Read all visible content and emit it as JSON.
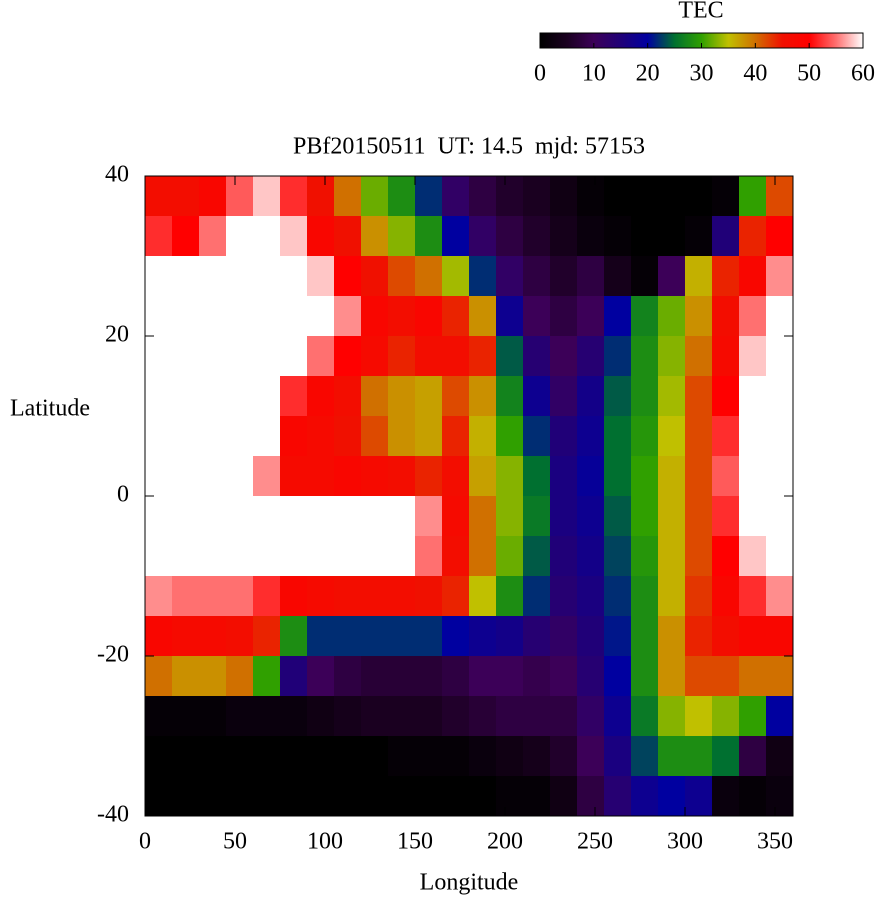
{
  "chart_data": {
    "type": "heatmap",
    "title": "PBf20150511  UT: 14.5  mjd: 57153",
    "xlabel": "Longitude",
    "ylabel": "Latitude",
    "colorbar_label": "TEC",
    "xlim": [
      0,
      360
    ],
    "ylim": [
      -40,
      40
    ],
    "zlim": [
      0,
      60
    ],
    "xticks": [
      0,
      50,
      100,
      150,
      200,
      250,
      300,
      350
    ],
    "yticks": [
      -40,
      -20,
      0,
      20,
      40
    ],
    "zticks": [
      0,
      10,
      20,
      30,
      40,
      50,
      60
    ],
    "palette": [
      "#000000",
      "#1a0020",
      "#3c0058",
      "#200078",
      "#0000a0",
      "#007030",
      "#30a000",
      "#c0c000",
      "#d07000",
      "#f01000",
      "#ff0000",
      "#ff7070",
      "#ffffff"
    ],
    "x": [
      7.5,
      22.5,
      37.5,
      52.5,
      67.5,
      82.5,
      97.5,
      112.5,
      127.5,
      142.5,
      157.5,
      172.5,
      187.5,
      202.5,
      217.5,
      232.5,
      247.5,
      262.5,
      277.5,
      292.5,
      307.5,
      322.5,
      337.5,
      352.5
    ],
    "y": [
      37.5,
      32.5,
      27.5,
      22.5,
      17.5,
      12.5,
      7.5,
      2.5,
      -2.5,
      -7.5,
      -12.5,
      -17.5,
      -22.5,
      -27.5,
      -32.5,
      -37.5
    ],
    "values": [
      [
        46,
        46,
        48,
        54,
        58,
        52,
        45,
        40,
        32,
        28,
        22,
        12,
        8,
        6,
        5,
        3,
        1,
        0,
        0,
        0,
        0,
        1,
        30,
        42
      ],
      [
        52,
        50,
        55,
        60,
        60,
        58,
        48,
        45,
        38,
        33,
        28,
        20,
        12,
        8,
        6,
        4,
        2,
        1,
        0,
        0,
        1,
        15,
        44,
        50
      ],
      [
        60,
        60,
        60,
        60,
        60,
        60,
        58,
        50,
        45,
        42,
        40,
        34,
        22,
        12,
        8,
        6,
        8,
        4,
        1,
        10,
        36,
        44,
        48,
        56
      ],
      [
        60,
        60,
        60,
        60,
        60,
        60,
        60,
        56,
        48,
        46,
        48,
        44,
        38,
        18,
        10,
        8,
        10,
        20,
        27,
        32,
        38,
        46,
        55,
        60
      ],
      [
        60,
        60,
        60,
        60,
        60,
        60,
        55,
        50,
        47,
        44,
        46,
        46,
        44,
        24,
        14,
        10,
        14,
        22,
        28,
        33,
        40,
        47,
        58,
        60
      ],
      [
        60,
        60,
        60,
        60,
        60,
        52,
        48,
        46,
        40,
        38,
        37,
        42,
        38,
        27,
        18,
        12,
        17,
        24,
        28,
        34,
        42,
        50,
        60,
        60
      ],
      [
        60,
        60,
        60,
        60,
        60,
        48,
        47,
        45,
        42,
        38,
        37,
        44,
        36,
        30,
        22,
        15,
        18,
        25,
        29,
        35,
        42,
        52,
        60,
        60
      ],
      [
        60,
        60,
        60,
        60,
        56,
        47,
        47,
        48,
        47,
        46,
        44,
        46,
        37,
        33,
        25,
        16,
        19,
        25,
        30,
        36,
        42,
        54,
        60,
        60
      ],
      [
        60,
        60,
        60,
        60,
        60,
        60,
        60,
        60,
        60,
        60,
        56,
        47,
        40,
        33,
        26,
        16,
        18,
        24,
        30,
        36,
        42,
        52,
        60,
        60
      ],
      [
        60,
        60,
        60,
        60,
        60,
        60,
        60,
        60,
        60,
        60,
        55,
        46,
        40,
        32,
        24,
        15,
        17,
        23,
        29,
        36,
        42,
        50,
        58,
        60
      ],
      [
        56,
        55,
        55,
        55,
        52,
        48,
        47,
        46,
        46,
        46,
        45,
        44,
        35,
        28,
        22,
        14,
        16,
        22,
        28,
        36,
        43,
        48,
        52,
        56
      ],
      [
        48,
        47,
        47,
        46,
        44,
        28,
        22,
        22,
        22,
        22,
        22,
        20,
        18,
        17,
        14,
        12,
        15,
        21,
        28,
        38,
        44,
        46,
        48,
        48
      ],
      [
        40,
        38,
        38,
        40,
        30,
        15,
        10,
        8,
        7,
        7,
        7,
        8,
        10,
        10,
        9,
        10,
        14,
        20,
        28,
        38,
        42,
        42,
        40,
        40
      ],
      [
        1,
        1,
        1,
        2,
        2,
        2,
        3,
        4,
        5,
        5,
        5,
        6,
        7,
        8,
        8,
        8,
        12,
        18,
        26,
        33,
        35,
        33,
        30,
        20
      ],
      [
        0,
        0,
        0,
        0,
        0,
        0,
        0,
        0,
        0,
        1,
        1,
        1,
        2,
        3,
        4,
        6,
        10,
        16,
        23,
        28,
        28,
        25,
        8,
        3
      ],
      [
        0,
        0,
        0,
        0,
        0,
        0,
        0,
        0,
        0,
        0,
        0,
        0,
        0,
        1,
        1,
        3,
        8,
        14,
        18,
        20,
        18,
        2,
        1,
        2
      ]
    ]
  }
}
